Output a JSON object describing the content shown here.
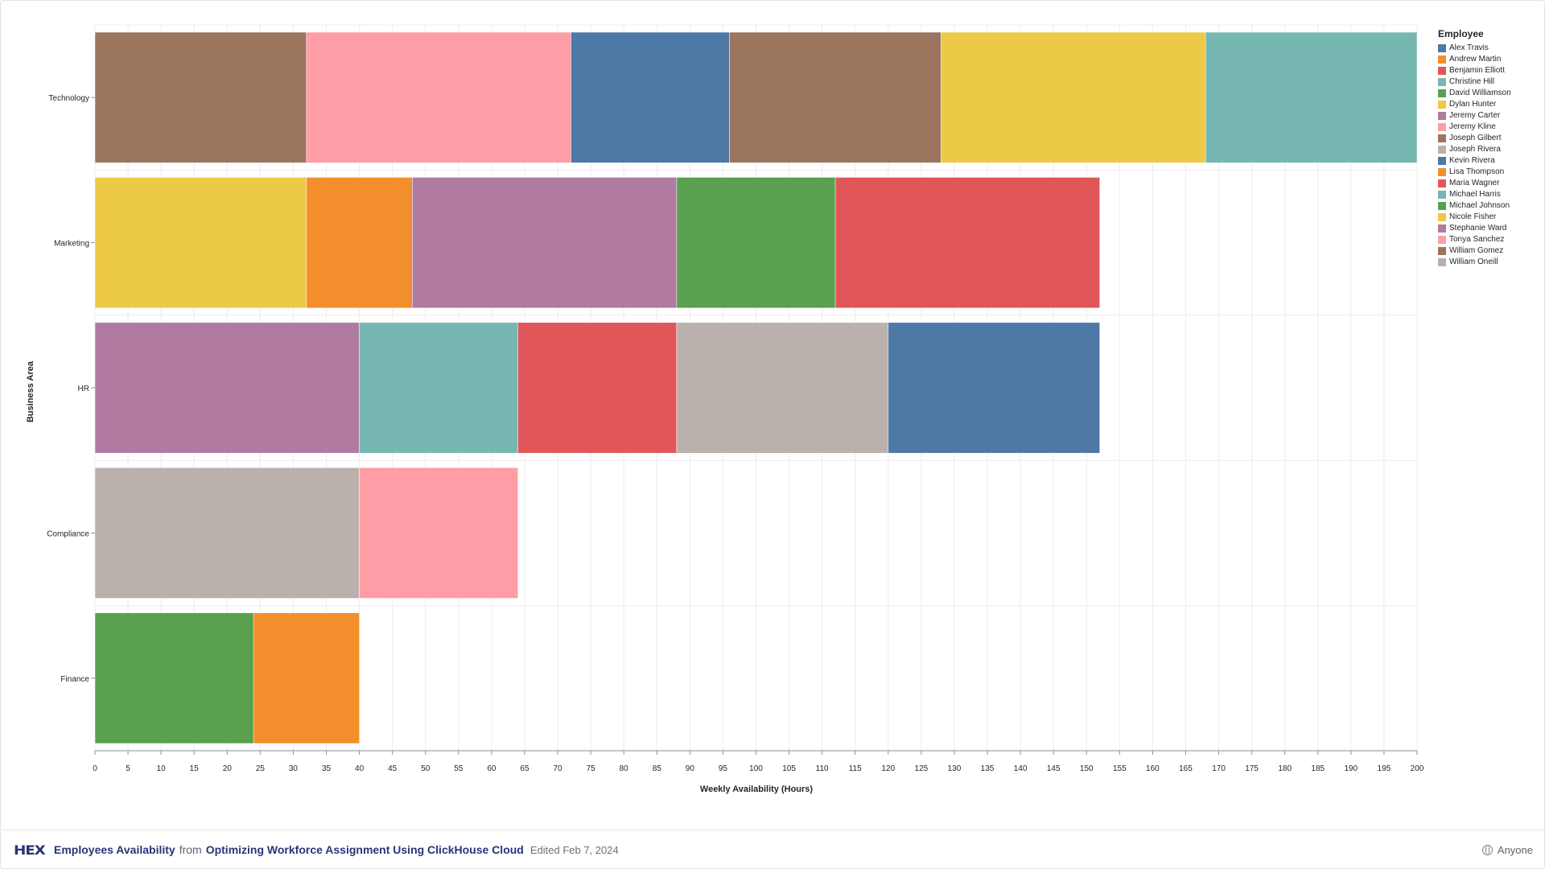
{
  "footer": {
    "logo_text": "HEX",
    "project_title": "Employees Availability",
    "from_text": "from",
    "source_title": "Optimizing Workforce Assignment Using ClickHouse Cloud",
    "edited_text": "Edited Feb 7, 2024",
    "audience_label": "Anyone"
  },
  "chart_data": {
    "type": "bar",
    "orientation": "horizontal",
    "stacked": true,
    "xlabel": "Weekly Availability (Hours)",
    "ylabel": "Business Area",
    "xlim": [
      0,
      200
    ],
    "x_tick_step": 5,
    "grid": true,
    "legend_placement": "right",
    "legend_title": "Employee",
    "categories": [
      "Technology",
      "Marketing",
      "HR",
      "Compliance",
      "Finance"
    ],
    "employees": [
      {
        "name": "Alex Travis",
        "color": "#4e79a7"
      },
      {
        "name": "Andrew Martin",
        "color": "#f28e2b"
      },
      {
        "name": "Benjamin Elliott",
        "color": "#e15759"
      },
      {
        "name": "Christine Hill",
        "color": "#76b7b2"
      },
      {
        "name": "David Williamson",
        "color": "#59a14f"
      },
      {
        "name": "Dylan Hunter",
        "color": "#edc948"
      },
      {
        "name": "Jeremy Carter",
        "color": "#b07aa1"
      },
      {
        "name": "Jeremy Kline",
        "color": "#ff9da7"
      },
      {
        "name": "Joseph Gilbert",
        "color": "#9c755f"
      },
      {
        "name": "Joseph Rivera",
        "color": "#bab0ac"
      },
      {
        "name": "Kevin Rivera",
        "color": "#4e79a7"
      },
      {
        "name": "Lisa Thompson",
        "color": "#f28e2b"
      },
      {
        "name": "Maria Wagner",
        "color": "#e15759"
      },
      {
        "name": "Michael Harris",
        "color": "#76b7b2"
      },
      {
        "name": "Michael Johnson",
        "color": "#59a14f"
      },
      {
        "name": "Nicole Fisher",
        "color": "#edc948"
      },
      {
        "name": "Stephanie Ward",
        "color": "#b07aa1"
      },
      {
        "name": "Tonya Sanchez",
        "color": "#ff9da7"
      },
      {
        "name": "William Gomez",
        "color": "#9c755f"
      },
      {
        "name": "William Oneill",
        "color": "#bab0ac"
      }
    ],
    "bars": [
      {
        "category": "Technology",
        "segments": [
          {
            "employee": "Joseph Gilbert",
            "value": 32
          },
          {
            "employee": "Jeremy Kline",
            "value": 40
          },
          {
            "employee": "Alex Travis",
            "value": 24
          },
          {
            "employee": "William Gomez",
            "value": 32
          },
          {
            "employee": "Nicole Fisher",
            "value": 40
          },
          {
            "employee": "Michael Harris",
            "value": 32
          }
        ]
      },
      {
        "category": "Marketing",
        "segments": [
          {
            "employee": "Dylan Hunter",
            "value": 32
          },
          {
            "employee": "Lisa Thompson",
            "value": 16
          },
          {
            "employee": "Jeremy Carter",
            "value": 40
          },
          {
            "employee": "David Williamson",
            "value": 24
          },
          {
            "employee": "Maria Wagner",
            "value": 40
          }
        ]
      },
      {
        "category": "HR",
        "segments": [
          {
            "employee": "Stephanie Ward",
            "value": 40
          },
          {
            "employee": "Christine Hill",
            "value": 24
          },
          {
            "employee": "Benjamin Elliott",
            "value": 24
          },
          {
            "employee": "William Oneill",
            "value": 32
          },
          {
            "employee": "Kevin Rivera",
            "value": 32
          }
        ]
      },
      {
        "category": "Compliance",
        "segments": [
          {
            "employee": "Joseph Rivera",
            "value": 40
          },
          {
            "employee": "Tonya Sanchez",
            "value": 24
          }
        ]
      },
      {
        "category": "Finance",
        "segments": [
          {
            "employee": "Michael Johnson",
            "value": 24
          },
          {
            "employee": "Andrew Martin",
            "value": 16
          }
        ]
      }
    ]
  }
}
